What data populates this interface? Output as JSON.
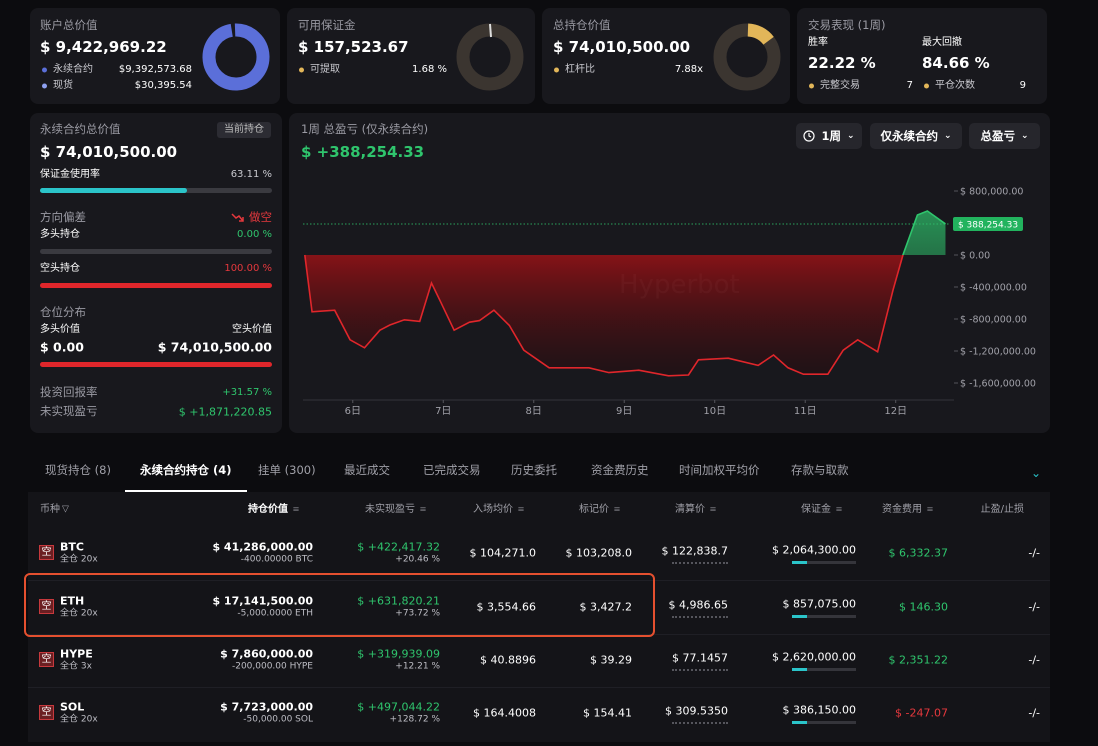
{
  "cards": [
    {
      "title": "账户总价值",
      "value": "$ 9,422,969.22",
      "items": [
        {
          "label": "永续合约",
          "value": "$9,392,573.68"
        },
        {
          "label": "现货",
          "value": "$30,395.54"
        }
      ]
    },
    {
      "title": "可用保证金",
      "value": "$ 157,523.67",
      "items": [
        {
          "label": "可提取",
          "value": "1.68 %"
        }
      ]
    },
    {
      "title": "总持仓价值",
      "value": "$ 74,010,500.00",
      "items": [
        {
          "label": "杠杆比",
          "value": "7.88x"
        }
      ]
    },
    {
      "title": "交易表现 (1周)",
      "stats": [
        {
          "label": "胜率",
          "value": "22.22 %"
        },
        {
          "label": "最大回撤",
          "value": "84.66 %"
        }
      ],
      "items": [
        {
          "label": "完整交易",
          "value": "7"
        },
        {
          "label": "平仓次数",
          "value": "9"
        }
      ]
    }
  ],
  "perp_panel": {
    "title": "永续合约总价值",
    "badge": "当前持仓",
    "value": "$ 74,010,500.00",
    "margin_label": "保证金使用率",
    "margin_value": "63.11 %",
    "bias_label": "方向偏差",
    "bias_value": "做空",
    "long_label": "多头持仓",
    "long_value": "0.00 %",
    "short_label": "空头持仓",
    "short_value": "100.00 %",
    "dist_label": "仓位分布",
    "long_value_label": "多头价值",
    "short_value_label": "空头价值",
    "long_amount": "$ 0.00",
    "short_amount": "$ 74,010,500.00",
    "roi_label": "投资回报率",
    "roi_value": "+31.57 %",
    "upnl_label": "未实现盈亏",
    "upnl_value": "$ +1,871,220.85"
  },
  "pnl_chart": {
    "type": "area",
    "title": "1周 总盈亏 (仅永续合约)",
    "value": "$ +388,254.33",
    "filters": [
      "1周",
      "仅永续合约",
      "总盈亏"
    ],
    "watermark": "Hyperbot",
    "x": [
      5.47,
      5.55,
      5.8,
      5.97,
      6.13,
      6.3,
      6.41,
      6.57,
      6.74,
      6.87,
      6.96,
      7.12,
      7.29,
      7.4,
      7.56,
      7.73,
      7.89,
      8.17,
      8.61,
      8.83,
      9.16,
      9.49,
      9.71,
      9.82,
      10.15,
      10.48,
      10.65,
      10.81,
      10.98,
      11.25,
      11.42,
      11.58,
      11.8,
      11.97,
      12.08,
      12.24,
      12.35,
      12.55
    ],
    "values": [
      0,
      -710000,
      -690000,
      -1060000,
      -1160000,
      -940000,
      -875000,
      -810000,
      -830000,
      -350000,
      -560000,
      -940000,
      -840000,
      -820000,
      -690000,
      -880000,
      -1190000,
      -1410000,
      -1410000,
      -1470000,
      -1440000,
      -1510000,
      -1500000,
      -1310000,
      -1290000,
      -1380000,
      -1250000,
      -1410000,
      -1490000,
      -1490000,
      -1190000,
      -1060000,
      -1210000,
      -440000,
      0,
      500000,
      550000,
      388254.33
    ],
    "current_label": "$ 388,254.33",
    "xlim": [
      5.45,
      12.6
    ],
    "ylim": [
      -1812500,
      937500
    ],
    "xticks": [
      {
        "value": 6,
        "label": "6日"
      },
      {
        "value": 7,
        "label": "7日"
      },
      {
        "value": 8,
        "label": "8日"
      },
      {
        "value": 9,
        "label": "9日"
      },
      {
        "value": 10,
        "label": "10日"
      },
      {
        "value": 11,
        "label": "11日"
      },
      {
        "value": 12,
        "label": "12日"
      }
    ],
    "yticks": [
      {
        "value": 800000,
        "label": "$ 800,000.00"
      },
      {
        "value": 0,
        "label": "$ 0.00"
      },
      {
        "value": -400000,
        "label": "$ -400,000.00"
      },
      {
        "value": -800000,
        "label": "$ -800,000.00"
      },
      {
        "value": -1200000,
        "label": "$ -1,200,000.00"
      },
      {
        "value": -1600000,
        "label": "$ -1,600,000.00"
      }
    ]
  },
  "tabs": [
    "现货持仓 (8)",
    "永续合约持仓 (4)",
    "挂单 (300)",
    "最近成交",
    "已完成交易",
    "历史委托",
    "资金费历史",
    "时间加权平均价",
    "存款与取款"
  ],
  "active_tab": 1,
  "table": {
    "badge": "空",
    "headers": [
      "币种",
      "持仓价值",
      "未实现盈亏",
      "入场均价",
      "标记价",
      "清算价",
      "保证金",
      "资金费用",
      "止盈/止损"
    ],
    "rows": [
      [
        "BTC",
        "全仓 20x",
        "$ 41,286,000.00",
        "-400.00000 BTC",
        "$ +422,417.32",
        "+20.46 %",
        "$ 104,271.0",
        "$ 103,208.0",
        "$ 122,838.7",
        "$ 2,064,300.00",
        "$ 6,332.37",
        "-/-"
      ],
      [
        "ETH",
        "全仓 20x",
        "$ 17,141,500.00",
        "-5,000.0000 ETH",
        "$ +631,820.21",
        "+73.72 %",
        "$ 3,554.66",
        "$ 3,427.2",
        "$ 4,986.65",
        "$ 857,075.00",
        "$ 146.30",
        "-/-"
      ],
      [
        "HYPE",
        "全仓 3x",
        "$ 7,860,000.00",
        "-200,000.00 HYPE",
        "$ +319,939.09",
        "+12.21 %",
        "$ 40.8896",
        "$ 39.29",
        "$ 77.1457",
        "$ 2,620,000.00",
        "$ 2,351.22",
        "-/-"
      ],
      [
        "SOL",
        "全仓 20x",
        "$ 7,723,000.00",
        "-50,000.00 SOL",
        "$ +497,044.22",
        "+128.72 %",
        "$ 164.4008",
        "$ 154.41",
        "$ 309.5350",
        "$ 386,150.00",
        "$ -247.07",
        "-/-"
      ]
    ],
    "highlight_row": 1
  }
}
